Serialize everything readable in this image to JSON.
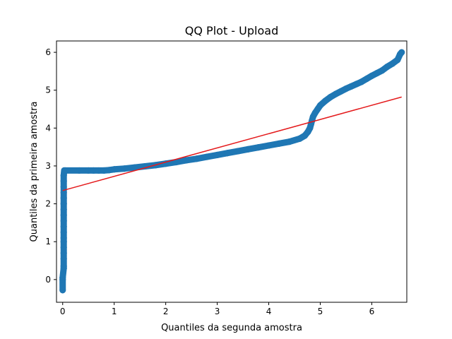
{
  "chart_data": {
    "type": "scatter",
    "title": "QQ Plot - Upload",
    "xlabel": "Quantiles da segunda amostra",
    "ylabel": "Quantiles da primeira amostra",
    "xlim": [
      -0.12,
      6.68
    ],
    "ylim": [
      -0.6,
      6.3
    ],
    "xticks": [
      0,
      1,
      2,
      3,
      4,
      5,
      6
    ],
    "yticks": [
      0,
      1,
      2,
      3,
      4,
      5,
      6
    ],
    "grid": false,
    "legend": "none",
    "marker_color": "#1f77b4",
    "line_color": "#e41a1c",
    "series": [
      {
        "type": "scatter",
        "points": [
          [
            0.0,
            -0.28
          ],
          [
            0.0,
            0.0
          ],
          [
            0.0,
            0.05
          ],
          [
            0.02,
            0.3
          ],
          [
            0.02,
            0.35
          ],
          [
            0.02,
            0.55
          ],
          [
            0.02,
            0.7
          ],
          [
            0.02,
            0.85
          ],
          [
            0.02,
            1.0
          ],
          [
            0.02,
            1.1
          ],
          [
            0.02,
            1.25
          ],
          [
            0.02,
            1.4
          ],
          [
            0.02,
            1.55
          ],
          [
            0.02,
            1.7
          ],
          [
            0.02,
            1.85
          ],
          [
            0.02,
            2.0
          ],
          [
            0.02,
            2.15
          ],
          [
            0.02,
            2.3
          ],
          [
            0.02,
            2.45
          ],
          [
            0.02,
            2.6
          ],
          [
            0.02,
            2.75
          ],
          [
            0.03,
            2.88
          ],
          [
            0.05,
            2.88
          ],
          [
            0.32,
            2.88
          ],
          [
            0.5,
            2.88
          ],
          [
            0.6,
            2.88
          ],
          [
            0.7,
            2.88
          ],
          [
            0.8,
            2.88
          ],
          [
            0.9,
            2.89
          ],
          [
            1.0,
            2.91
          ],
          [
            1.2,
            2.93
          ],
          [
            1.4,
            2.96
          ],
          [
            1.6,
            2.99
          ],
          [
            1.8,
            3.02
          ],
          [
            2.0,
            3.06
          ],
          [
            2.2,
            3.1
          ],
          [
            2.4,
            3.15
          ],
          [
            2.6,
            3.19
          ],
          [
            2.8,
            3.24
          ],
          [
            3.0,
            3.29
          ],
          [
            3.2,
            3.34
          ],
          [
            3.4,
            3.39
          ],
          [
            3.6,
            3.44
          ],
          [
            3.8,
            3.49
          ],
          [
            4.0,
            3.54
          ],
          [
            4.2,
            3.59
          ],
          [
            4.4,
            3.64
          ],
          [
            4.6,
            3.72
          ],
          [
            4.7,
            3.8
          ],
          [
            4.76,
            3.9
          ],
          [
            4.8,
            4.0
          ],
          [
            4.82,
            4.1
          ],
          [
            4.84,
            4.2
          ],
          [
            4.86,
            4.3
          ],
          [
            4.9,
            4.4
          ],
          [
            4.95,
            4.5
          ],
          [
            5.0,
            4.6
          ],
          [
            5.1,
            4.72
          ],
          [
            5.2,
            4.82
          ],
          [
            5.3,
            4.9
          ],
          [
            5.4,
            4.97
          ],
          [
            5.5,
            5.04
          ],
          [
            5.6,
            5.1
          ],
          [
            5.7,
            5.16
          ],
          [
            5.8,
            5.22
          ],
          [
            5.9,
            5.3
          ],
          [
            6.0,
            5.38
          ],
          [
            6.1,
            5.45
          ],
          [
            6.2,
            5.52
          ],
          [
            6.3,
            5.62
          ],
          [
            6.4,
            5.7
          ],
          [
            6.5,
            5.8
          ],
          [
            6.55,
            5.95
          ],
          [
            6.58,
            6.0
          ]
        ]
      },
      {
        "type": "line",
        "points": [
          [
            0.0,
            2.35
          ],
          [
            6.58,
            4.82
          ]
        ]
      }
    ]
  }
}
